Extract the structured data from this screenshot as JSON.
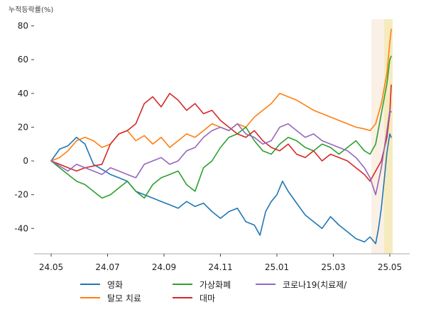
{
  "chart_data": {
    "type": "line",
    "title": "",
    "unit_label": "누적등락률(%)",
    "xlabel": "",
    "ylabel": "",
    "ylim": [
      -55,
      84
    ],
    "yticks": [
      -40,
      -20,
      0,
      20,
      40,
      60,
      80
    ],
    "ytick_labels": [
      "-40",
      "-20",
      "0",
      "20",
      "40",
      "60",
      "80"
    ],
    "xlim": [
      0,
      12.2
    ],
    "xticks": [
      0,
      2,
      4,
      6,
      8,
      10,
      12
    ],
    "xtick_labels": [
      "24.05",
      "24.07",
      "24.09",
      "24.11",
      "25.01",
      "25.03",
      "25.05"
    ],
    "grid": false,
    "legend_position": "bottom",
    "highlights": [
      {
        "x0": 11.35,
        "x1": 12.1,
        "color": "#f6e3cf",
        "opacity": 0.55
      },
      {
        "x0": 11.8,
        "x1": 12.1,
        "color": "#f3eab0",
        "opacity": 0.75
      }
    ],
    "series": [
      {
        "name": "영화",
        "color": "#1f77b4",
        "x": [
          0,
          0.3,
          0.6,
          0.9,
          1.2,
          1.5,
          1.8,
          2.1,
          2.4,
          2.7,
          3.0,
          3.3,
          3.6,
          3.9,
          4.2,
          4.5,
          4.8,
          5.1,
          5.4,
          5.7,
          6.0,
          6.3,
          6.6,
          6.9,
          7.2,
          7.4,
          7.6,
          7.8,
          8.0,
          8.2,
          8.4,
          8.7,
          9.0,
          9.3,
          9.6,
          9.9,
          10.2,
          10.5,
          10.8,
          11.1,
          11.3,
          11.5,
          11.6,
          11.7,
          11.8,
          11.9,
          12.0,
          12.05
        ],
        "values": [
          0,
          7,
          9,
          14,
          10,
          -2,
          -5,
          -8,
          -10,
          -12,
          -18,
          -20,
          -22,
          -24,
          -26,
          -28,
          -24,
          -27,
          -25,
          -30,
          -34,
          -30,
          -28,
          -36,
          -38,
          -44,
          -30,
          -24,
          -20,
          -12,
          -18,
          -25,
          -32,
          -36,
          -40,
          -33,
          -38,
          -42,
          -46,
          -48,
          -45,
          -49,
          -40,
          -28,
          -12,
          5,
          16,
          14
        ]
      },
      {
        "name": "탈모 치료",
        "color": "#ff7f0e",
        "x": [
          0,
          0.3,
          0.6,
          0.9,
          1.2,
          1.5,
          1.8,
          2.1,
          2.4,
          2.7,
          3.0,
          3.3,
          3.6,
          3.9,
          4.2,
          4.5,
          4.8,
          5.1,
          5.4,
          5.7,
          6.0,
          6.3,
          6.6,
          6.9,
          7.2,
          7.5,
          7.8,
          8.1,
          8.4,
          8.7,
          9.0,
          9.3,
          9.6,
          9.9,
          10.2,
          10.5,
          10.8,
          11.1,
          11.3,
          11.5,
          11.7,
          11.9,
          12.0,
          12.05
        ],
        "values": [
          0,
          2,
          6,
          12,
          14,
          12,
          8,
          10,
          16,
          18,
          12,
          15,
          10,
          14,
          8,
          12,
          16,
          14,
          18,
          22,
          20,
          18,
          22,
          20,
          26,
          30,
          34,
          40,
          38,
          36,
          33,
          30,
          28,
          26,
          24,
          22,
          20,
          19,
          18,
          22,
          34,
          52,
          70,
          78
        ]
      },
      {
        "name": "가상화폐",
        "color": "#2ca02c",
        "x": [
          0,
          0.3,
          0.6,
          0.9,
          1.2,
          1.5,
          1.8,
          2.1,
          2.4,
          2.7,
          3.0,
          3.3,
          3.6,
          3.9,
          4.2,
          4.5,
          4.8,
          5.1,
          5.4,
          5.7,
          6.0,
          6.3,
          6.6,
          6.9,
          7.2,
          7.5,
          7.8,
          8.1,
          8.4,
          8.7,
          9.0,
          9.3,
          9.6,
          9.9,
          10.2,
          10.5,
          10.8,
          11.1,
          11.3,
          11.5,
          11.7,
          11.9,
          12.0,
          12.05
        ],
        "values": [
          0,
          -4,
          -8,
          -12,
          -14,
          -18,
          -22,
          -20,
          -16,
          -12,
          -18,
          -22,
          -14,
          -10,
          -8,
          -6,
          -14,
          -18,
          -4,
          0,
          8,
          14,
          16,
          20,
          12,
          6,
          4,
          10,
          14,
          12,
          8,
          6,
          10,
          8,
          4,
          8,
          12,
          6,
          4,
          10,
          28,
          46,
          60,
          62
        ]
      },
      {
        "name": "대마",
        "color": "#d62728",
        "x": [
          0,
          0.3,
          0.6,
          0.9,
          1.2,
          1.5,
          1.8,
          2.1,
          2.4,
          2.7,
          3.0,
          3.3,
          3.6,
          3.9,
          4.2,
          4.5,
          4.8,
          5.1,
          5.4,
          5.7,
          6.0,
          6.3,
          6.6,
          6.9,
          7.2,
          7.5,
          7.8,
          8.1,
          8.4,
          8.7,
          9.0,
          9.3,
          9.6,
          9.9,
          10.2,
          10.5,
          10.8,
          11.1,
          11.3,
          11.5,
          11.7,
          11.9,
          12.0,
          12.05
        ],
        "values": [
          0,
          -2,
          -4,
          -6,
          -4,
          -3,
          -2,
          10,
          16,
          18,
          22,
          34,
          38,
          32,
          40,
          36,
          30,
          34,
          28,
          30,
          24,
          20,
          16,
          14,
          18,
          12,
          8,
          6,
          10,
          4,
          2,
          6,
          0,
          4,
          2,
          0,
          -4,
          -8,
          -12,
          -6,
          0,
          14,
          28,
          45
        ]
      },
      {
        "name": "코로나19(치료제/",
        "color": "#9467bd",
        "x": [
          0,
          0.3,
          0.6,
          0.9,
          1.2,
          1.5,
          1.8,
          2.1,
          2.4,
          2.7,
          3.0,
          3.3,
          3.6,
          3.9,
          4.2,
          4.5,
          4.8,
          5.1,
          5.4,
          5.7,
          6.0,
          6.3,
          6.6,
          6.9,
          7.2,
          7.5,
          7.8,
          8.1,
          8.4,
          8.7,
          9.0,
          9.3,
          9.6,
          9.9,
          10.2,
          10.5,
          10.8,
          11.1,
          11.3,
          11.5,
          11.7,
          11.9,
          12.0,
          12.05
        ],
        "values": [
          0,
          -3,
          -6,
          -2,
          -4,
          -6,
          -8,
          -4,
          -6,
          -8,
          -10,
          -2,
          0,
          2,
          -2,
          0,
          6,
          8,
          14,
          18,
          20,
          18,
          22,
          16,
          14,
          10,
          12,
          20,
          22,
          18,
          14,
          16,
          12,
          10,
          8,
          6,
          2,
          -4,
          -10,
          -20,
          -4,
          18,
          30,
          29
        ]
      }
    ]
  }
}
